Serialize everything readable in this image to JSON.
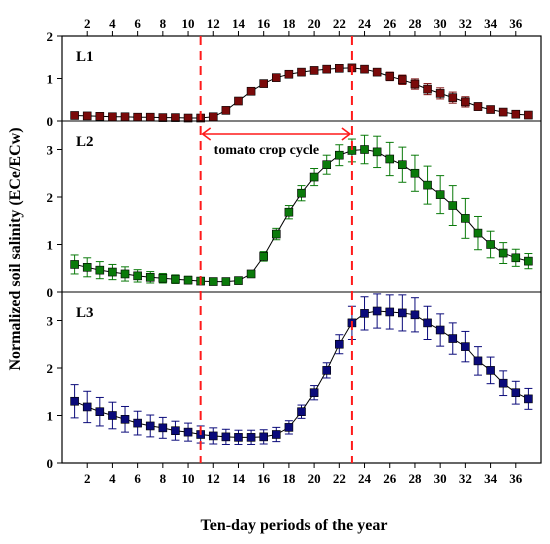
{
  "chart_data": {
    "type": "line",
    "xlabel": "Ten-day periods of the year",
    "ylabel": "Normalized soil salinity (ECe/ECw)",
    "x_ticks": [
      2,
      4,
      6,
      8,
      10,
      12,
      14,
      16,
      18,
      20,
      22,
      24,
      26,
      28,
      30,
      32,
      34,
      36
    ],
    "xlim": [
      0,
      38
    ],
    "x": [
      1,
      2,
      3,
      4,
      5,
      6,
      7,
      8,
      9,
      10,
      11,
      12,
      13,
      14,
      15,
      16,
      17,
      18,
      19,
      20,
      21,
      22,
      23,
      24,
      25,
      26,
      27,
      28,
      29,
      30,
      31,
      32,
      33,
      34,
      35,
      36,
      37
    ],
    "vlines": [
      11,
      23
    ],
    "annotation": {
      "text": "tomato crop cycle",
      "x_start": 11,
      "x_end": 23
    },
    "panels": [
      {
        "label": "L1",
        "color": "#7a0a0a",
        "ylim": [
          0,
          2
        ],
        "y_ticks": [
          0,
          1,
          2
        ],
        "values": [
          0.13,
          0.12,
          0.11,
          0.1,
          0.1,
          0.09,
          0.09,
          0.08,
          0.08,
          0.07,
          0.07,
          0.1,
          0.25,
          0.47,
          0.7,
          0.88,
          1.02,
          1.1,
          1.15,
          1.19,
          1.22,
          1.24,
          1.25,
          1.22,
          1.15,
          1.05,
          0.97,
          0.87,
          0.75,
          0.65,
          0.55,
          0.45,
          0.34,
          0.27,
          0.21,
          0.16,
          0.14
        ],
        "errors": [
          0.04,
          0.04,
          0.03,
          0.03,
          0.03,
          0.03,
          0.03,
          0.03,
          0.03,
          0.03,
          0.03,
          0.03,
          0.04,
          0.05,
          0.05,
          0.05,
          0.05,
          0.05,
          0.05,
          0.05,
          0.05,
          0.05,
          0.05,
          0.06,
          0.08,
          0.1,
          0.11,
          0.12,
          0.13,
          0.13,
          0.13,
          0.12,
          0.09,
          0.07,
          0.05,
          0.05,
          0.04
        ]
      },
      {
        "label": "L2",
        "color": "#0a7a0a",
        "ylim": [
          0,
          3.6
        ],
        "y_ticks": [
          0,
          1,
          2,
          3
        ],
        "values": [
          0.58,
          0.52,
          0.46,
          0.42,
          0.38,
          0.34,
          0.31,
          0.29,
          0.27,
          0.25,
          0.23,
          0.22,
          0.22,
          0.24,
          0.38,
          0.75,
          1.22,
          1.68,
          2.08,
          2.42,
          2.68,
          2.88,
          2.98,
          3.0,
          2.95,
          2.8,
          2.68,
          2.5,
          2.25,
          2.05,
          1.82,
          1.55,
          1.24,
          1.0,
          0.82,
          0.72,
          0.65
        ],
        "errors": [
          0.2,
          0.2,
          0.18,
          0.16,
          0.15,
          0.13,
          0.12,
          0.1,
          0.09,
          0.08,
          0.07,
          0.06,
          0.06,
          0.06,
          0.06,
          0.1,
          0.12,
          0.14,
          0.16,
          0.18,
          0.2,
          0.22,
          0.24,
          0.3,
          0.33,
          0.35,
          0.37,
          0.38,
          0.4,
          0.4,
          0.42,
          0.42,
          0.35,
          0.28,
          0.22,
          0.18,
          0.16
        ]
      },
      {
        "label": "L3",
        "color": "#0a0a7a",
        "ylim": [
          0,
          3.6
        ],
        "y_ticks": [
          0,
          1,
          2,
          3
        ],
        "values": [
          1.3,
          1.18,
          1.08,
          1.0,
          0.92,
          0.84,
          0.78,
          0.74,
          0.68,
          0.65,
          0.6,
          0.57,
          0.55,
          0.54,
          0.54,
          0.55,
          0.6,
          0.75,
          1.08,
          1.48,
          1.95,
          2.5,
          2.95,
          3.15,
          3.2,
          3.18,
          3.16,
          3.12,
          2.95,
          2.8,
          2.62,
          2.45,
          2.15,
          1.95,
          1.68,
          1.48,
          1.35
        ],
        "errors": [
          0.35,
          0.33,
          0.3,
          0.28,
          0.27,
          0.25,
          0.23,
          0.22,
          0.2,
          0.19,
          0.18,
          0.17,
          0.16,
          0.15,
          0.15,
          0.15,
          0.15,
          0.14,
          0.14,
          0.15,
          0.16,
          0.2,
          0.35,
          0.35,
          0.36,
          0.36,
          0.38,
          0.36,
          0.35,
          0.34,
          0.33,
          0.32,
          0.3,
          0.28,
          0.26,
          0.24,
          0.22
        ]
      }
    ]
  }
}
